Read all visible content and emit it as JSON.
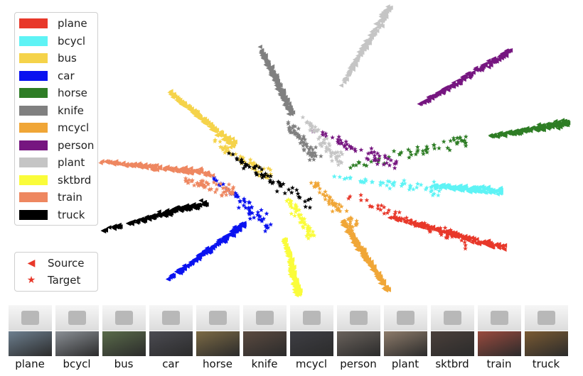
{
  "chart_data": {
    "type": "scatter",
    "title": "",
    "xlabel": "",
    "ylabel": "",
    "grid": false,
    "legend_position": "left",
    "domains": [
      {
        "name": "Source",
        "marker": "triangle-left"
      },
      {
        "name": "Target",
        "marker": "star"
      }
    ],
    "series": [
      {
        "name": "plane",
        "color": "#e8382a",
        "source_cluster": {
          "from": [
            545,
            305
          ],
          "to": [
            710,
            350
          ]
        },
        "target_cluster": {
          "from": [
            480,
            270
          ],
          "to": [
            660,
            345
          ]
        }
      },
      {
        "name": "bcycl",
        "color": "#5ef3f5",
        "source_cluster": {
          "from": [
            610,
            262
          ],
          "to": [
            705,
            270
          ]
        },
        "target_cluster": {
          "from": [
            470,
            250
          ],
          "to": [
            620,
            268
          ]
        }
      },
      {
        "name": "bus",
        "color": "#f5d34a",
        "source_cluster": {
          "from": [
            238,
            130
          ],
          "to": [
            330,
            205
          ]
        },
        "target_cluster": {
          "from": [
            300,
            200
          ],
          "to": [
            380,
            250
          ]
        }
      },
      {
        "name": "car",
        "color": "#0a12f0",
        "source_cluster": {
          "from": [
            235,
            395
          ],
          "to": [
            345,
            315
          ]
        },
        "target_cluster": {
          "from": [
            300,
            250
          ],
          "to": [
            380,
            320
          ]
        }
      },
      {
        "name": "horse",
        "color": "#2e7d25",
        "source_cluster": {
          "from": [
            690,
            192
          ],
          "to": [
            800,
            173
          ]
        },
        "target_cluster": {
          "from": [
            490,
            235
          ],
          "to": [
            660,
            195
          ]
        }
      },
      {
        "name": "knife",
        "color": "#808080",
        "source_cluster": {
          "from": [
            365,
            65
          ],
          "to": [
            410,
            160
          ]
        },
        "target_cluster": {
          "from": [
            400,
            165
          ],
          "to": [
            445,
            225
          ]
        }
      },
      {
        "name": "mcycl",
        "color": "#f0a637",
        "source_cluster": {
          "from": [
            480,
            310
          ],
          "to": [
            545,
            410
          ]
        },
        "target_cluster": {
          "from": [
            440,
            255
          ],
          "to": [
            500,
            320
          ]
        }
      },
      {
        "name": "person",
        "color": "#761680",
        "source_cluster": {
          "from": [
            590,
            148
          ],
          "to": [
            720,
            70
          ]
        },
        "target_cluster": {
          "from": [
            440,
            185
          ],
          "to": [
            560,
            235
          ]
        }
      },
      {
        "name": "plant",
        "color": "#c5c5c5",
        "source_cluster": {
          "from": [
            480,
            120
          ],
          "to": [
            548,
            8
          ]
        },
        "target_cluster": {
          "from": [
            420,
            160
          ],
          "to": [
            480,
            230
          ]
        }
      },
      {
        "name": "sktbrd",
        "color": "#fafc3a",
        "source_cluster": {
          "from": [
            400,
            335
          ],
          "to": [
            420,
            418
          ]
        },
        "target_cluster": {
          "from": [
            405,
            280
          ],
          "to": [
            440,
            335
          ]
        }
      },
      {
        "name": "train",
        "color": "#ee8760",
        "source_cluster": {
          "from": [
            142,
            228
          ],
          "to": [
            300,
            245
          ]
        },
        "target_cluster": {
          "from": [
            260,
            255
          ],
          "to": [
            330,
            270
          ]
        }
      },
      {
        "name": "truck",
        "color": "#000000",
        "source_cluster": {
          "from": [
            145,
            325
          ],
          "to": [
            290,
            285
          ]
        },
        "target_cluster": {
          "from": [
            320,
            215
          ],
          "to": [
            440,
            290
          ]
        }
      }
    ],
    "samples": [
      "plane",
      "bcycl",
      "bus",
      "car",
      "horse",
      "knife",
      "mcycl",
      "person",
      "plant",
      "sktbrd",
      "train",
      "truck"
    ]
  }
}
